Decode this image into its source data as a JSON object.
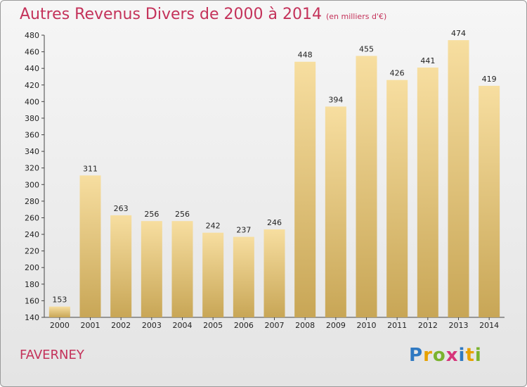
{
  "title": "Autres Revenus Divers de 2000 à 2014",
  "unit": "(en milliers d'€)",
  "place": "FAVERNEY",
  "logo": {
    "letters": [
      {
        "ch": "P",
        "color": "#2f79c2"
      },
      {
        "ch": "r",
        "color": "#e7a100"
      },
      {
        "ch": "o",
        "color": "#7ab32e"
      },
      {
        "ch": "x",
        "color": "#d6357a"
      },
      {
        "ch": "i",
        "color": "#2f79c2"
      },
      {
        "ch": "t",
        "color": "#e7a100"
      },
      {
        "ch": "i",
        "color": "#7ab32e"
      }
    ]
  },
  "colors": {
    "title": "#c4325a",
    "bar_light": "#f7dea0",
    "bar_dark": "#c8a656"
  },
  "chart_data": {
    "type": "bar",
    "categories": [
      "2000",
      "2001",
      "2002",
      "2003",
      "2004",
      "2005",
      "2006",
      "2007",
      "2008",
      "2009",
      "2010",
      "2011",
      "2012",
      "2013",
      "2014"
    ],
    "values": [
      153,
      311,
      263,
      256,
      256,
      242,
      237,
      246,
      448,
      394,
      455,
      426,
      441,
      474,
      419
    ],
    "title": "Autres Revenus Divers de 2000 à 2014",
    "ylim": [
      140,
      480
    ],
    "yticks": [
      140,
      160,
      180,
      200,
      220,
      240,
      260,
      280,
      300,
      320,
      340,
      360,
      380,
      400,
      420,
      440,
      460,
      480
    ],
    "grid": false,
    "legend": "none"
  }
}
